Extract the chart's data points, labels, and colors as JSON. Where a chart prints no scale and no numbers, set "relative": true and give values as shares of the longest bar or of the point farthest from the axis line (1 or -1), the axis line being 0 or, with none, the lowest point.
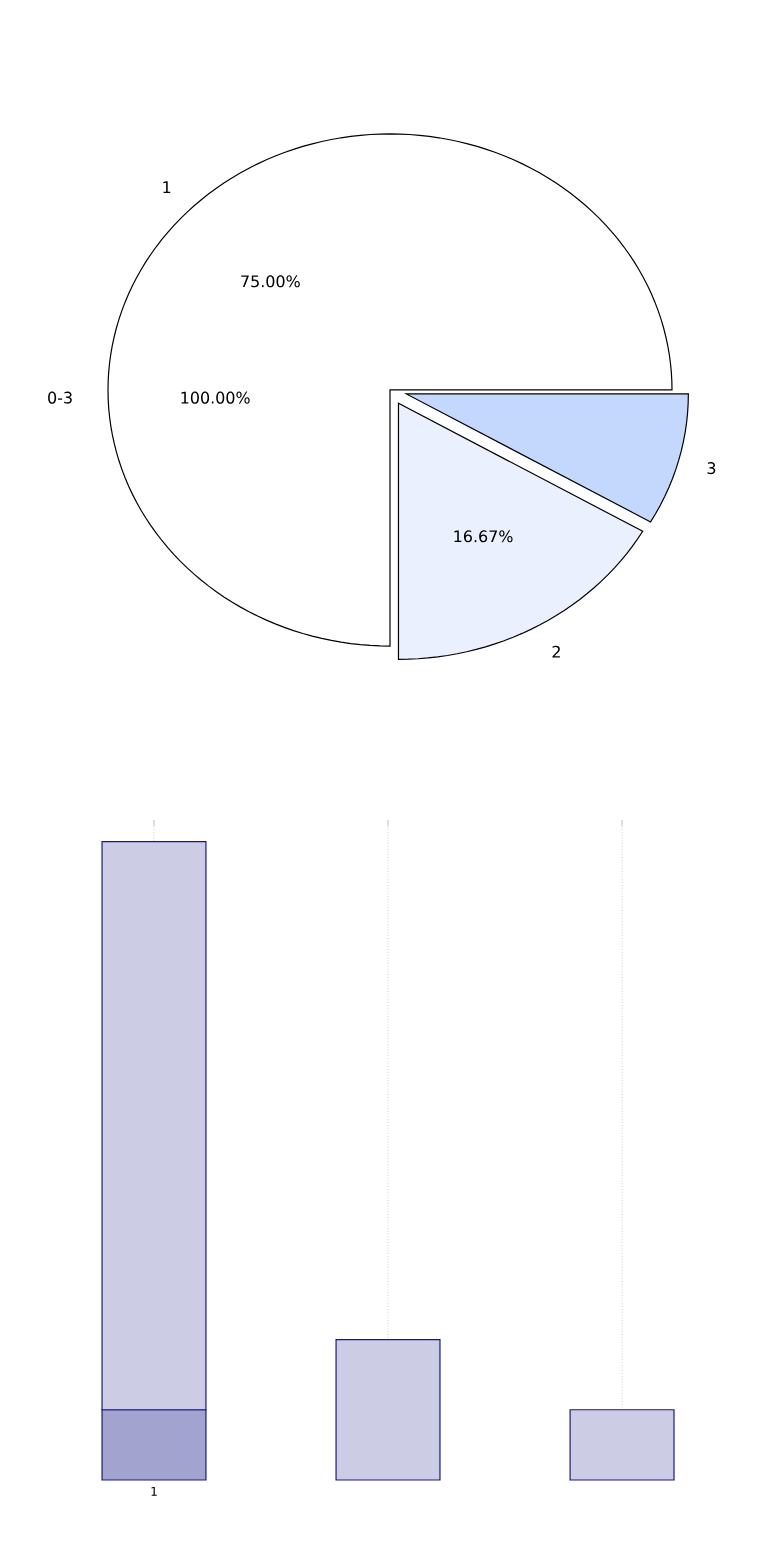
{
  "chart_data": [
    {
      "type": "pie",
      "categories": [
        "1",
        "2",
        "3"
      ],
      "values": [
        75,
        16.67,
        8.33
      ],
      "colors": [
        "#ffffff",
        "#eaf0fd",
        "#c4d8fd"
      ],
      "value_labels": [
        "75.00%",
        "16.67%",
        null
      ],
      "annotations": [
        "0-3",
        "100.00%"
      ]
    },
    {
      "type": "bar",
      "relative": true,
      "stacked": true,
      "categories": [
        "1",
        null,
        null
      ],
      "grid": "x",
      "series": [
        {
          "color": "#a2a4cf",
          "values": [
            0.11,
            null,
            null
          ]
        },
        {
          "color": "#cccce4",
          "values": [
            0.89,
            0.22,
            0.11
          ]
        }
      ]
    }
  ]
}
